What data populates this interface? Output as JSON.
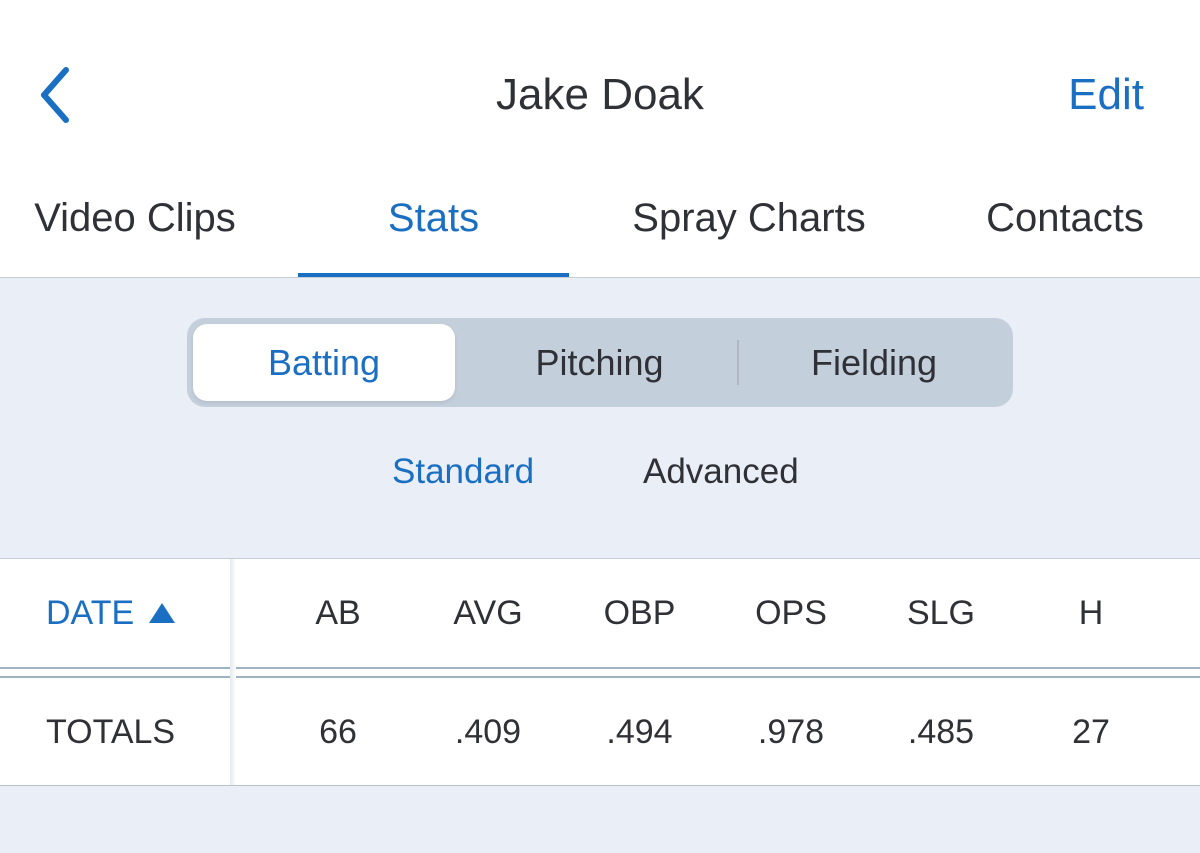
{
  "nav": {
    "title": "Jake Doak",
    "edit_label": "Edit",
    "back_icon": "chevron-left-icon"
  },
  "tabs": [
    {
      "label": "Video Clips",
      "active": false
    },
    {
      "label": "Stats",
      "active": true
    },
    {
      "label": "Spray Charts",
      "active": false
    },
    {
      "label": "Contacts",
      "active": false
    }
  ],
  "segments": [
    {
      "label": "Batting",
      "active": true
    },
    {
      "label": "Pitching",
      "active": false
    },
    {
      "label": "Fielding",
      "active": false
    }
  ],
  "subtabs": [
    {
      "label": "Standard",
      "active": true
    },
    {
      "label": "Advanced",
      "active": false
    }
  ],
  "table": {
    "sort_column": "DATE",
    "sort_icon": "triangle-up-icon",
    "columns": [
      "AB",
      "AVG",
      "OBP",
      "OPS",
      "SLG",
      "H"
    ],
    "totals_label": "TOTALS",
    "totals": [
      "66",
      ".409",
      ".494",
      ".978",
      ".485",
      "27"
    ]
  },
  "colors": {
    "accent": "#1b6fc2",
    "text": "#2f3136",
    "background": "#e9eef7"
  }
}
